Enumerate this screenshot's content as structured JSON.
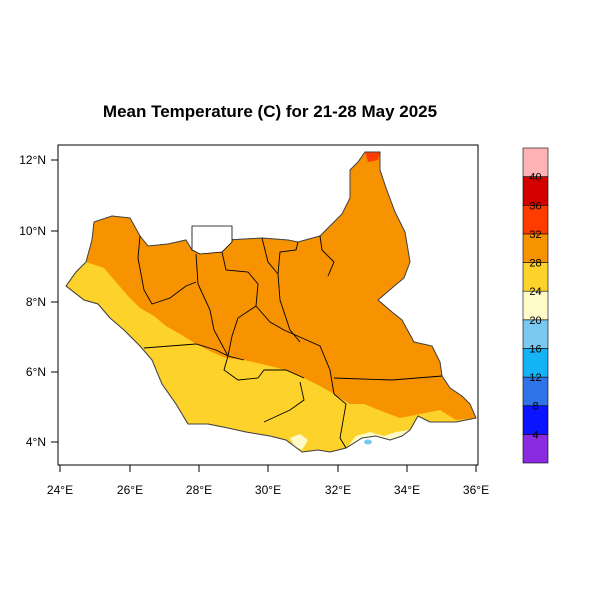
{
  "title": "Mean Temperature (C) for 21-28 May 2025",
  "map": {
    "lon_ticks": [
      "24°E",
      "26°E",
      "28°E",
      "30°E",
      "32°E",
      "34°E",
      "36°E"
    ],
    "lat_ticks": [
      "4°N",
      "6°N",
      "8°N",
      "10°N",
      "12°N"
    ],
    "lon_range": [
      24,
      36
    ],
    "lat_range": [
      3.3,
      12.4
    ]
  },
  "legend": {
    "labels": [
      "4",
      "8",
      "12",
      "16",
      "20",
      "24",
      "28",
      "32",
      "36",
      "40"
    ],
    "colors": [
      "#8a2be2",
      "#0a14ff",
      "#2e74e8",
      "#14b3f5",
      "#7bc8f0",
      "#fffbc8",
      "#fdd22a",
      "#f79200",
      "#ff3c00",
      "#d40000",
      "#ffb3b5"
    ]
  },
  "colors": {
    "temp_24_28": "#fdd22a",
    "temp_28_32": "#f79200",
    "temp_32_36": "#ff3c00",
    "temp_20_24": "#fffbc8",
    "temp_16_20": "#7bc8f0"
  }
}
